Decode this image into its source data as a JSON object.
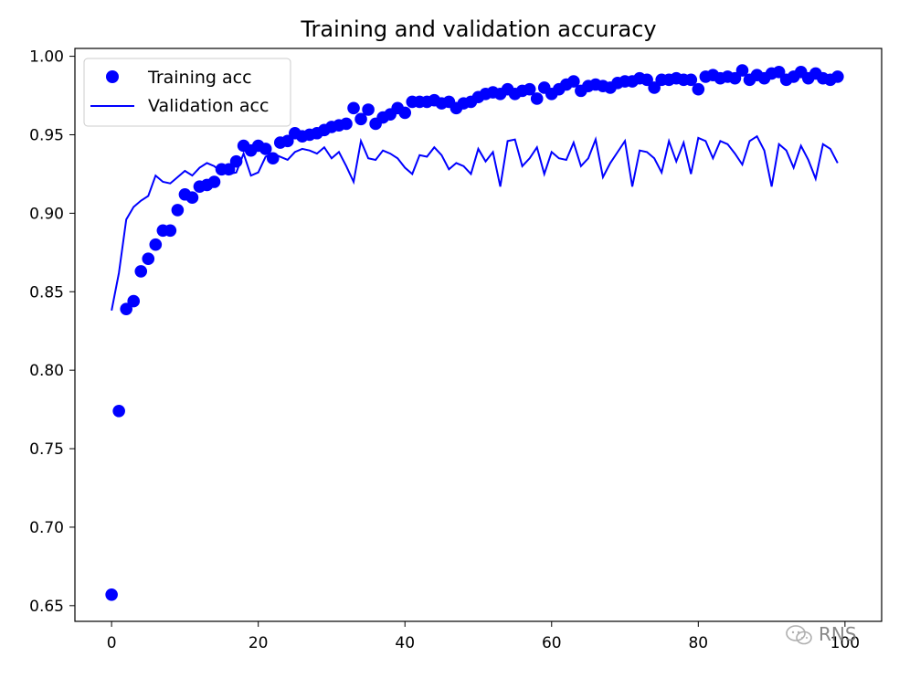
{
  "chart_data": {
    "type": "line",
    "title": "Training and validation accuracy",
    "xlabel": "",
    "ylabel": "",
    "xlim": [
      -5,
      105
    ],
    "ylim": [
      0.64,
      1.005
    ],
    "x_ticks": [
      0,
      20,
      40,
      60,
      80,
      100
    ],
    "y_ticks": [
      0.65,
      0.7,
      0.75,
      0.8,
      0.85,
      0.9,
      0.95,
      1.0
    ],
    "x_tick_labels": [
      "0",
      "20",
      "40",
      "60",
      "80",
      "100"
    ],
    "y_tick_labels": [
      "0.65",
      "0.70",
      "0.75",
      "0.80",
      "0.85",
      "0.90",
      "0.95",
      "1.00"
    ],
    "grid": false,
    "legend_position": "top-left",
    "x": [
      0,
      1,
      2,
      3,
      4,
      5,
      6,
      7,
      8,
      9,
      10,
      11,
      12,
      13,
      14,
      15,
      16,
      17,
      18,
      19,
      20,
      21,
      22,
      23,
      24,
      25,
      26,
      27,
      28,
      29,
      30,
      31,
      32,
      33,
      34,
      35,
      36,
      37,
      38,
      39,
      40,
      41,
      42,
      43,
      44,
      45,
      46,
      47,
      48,
      49,
      50,
      51,
      52,
      53,
      54,
      55,
      56,
      57,
      58,
      59,
      60,
      61,
      62,
      63,
      64,
      65,
      66,
      67,
      68,
      69,
      70,
      71,
      72,
      73,
      74,
      75,
      76,
      77,
      78,
      79,
      80,
      81,
      82,
      83,
      84,
      85,
      86,
      87,
      88,
      89,
      90,
      91,
      92,
      93,
      94,
      95,
      96,
      97,
      98,
      99
    ],
    "series": [
      {
        "name": "Training acc",
        "style": "markers",
        "color": "#0000ff",
        "values": [
          0.657,
          0.774,
          0.839,
          0.844,
          0.863,
          0.871,
          0.88,
          0.889,
          0.889,
          0.902,
          0.912,
          0.91,
          0.917,
          0.918,
          0.92,
          0.928,
          0.928,
          0.933,
          0.943,
          0.94,
          0.943,
          0.941,
          0.935,
          0.945,
          0.946,
          0.951,
          0.949,
          0.95,
          0.951,
          0.953,
          0.955,
          0.956,
          0.957,
          0.967,
          0.96,
          0.966,
          0.957,
          0.961,
          0.963,
          0.967,
          0.964,
          0.971,
          0.971,
          0.971,
          0.972,
          0.97,
          0.971,
          0.967,
          0.97,
          0.971,
          0.974,
          0.976,
          0.977,
          0.976,
          0.979,
          0.976,
          0.978,
          0.979,
          0.973,
          0.98,
          0.976,
          0.979,
          0.982,
          0.984,
          0.978,
          0.981,
          0.982,
          0.981,
          0.98,
          0.983,
          0.984,
          0.984,
          0.986,
          0.985,
          0.98,
          0.985,
          0.985,
          0.986,
          0.985,
          0.985,
          0.979,
          0.987,
          0.988,
          0.986,
          0.987,
          0.986,
          0.991,
          0.985,
          0.988,
          0.986,
          0.989,
          0.99,
          0.985,
          0.987,
          0.99,
          0.986,
          0.989,
          0.986,
          0.985,
          0.987
        ]
      },
      {
        "name": "Validation acc",
        "style": "line",
        "color": "#0000ff",
        "values": [
          0.838,
          0.862,
          0.896,
          0.904,
          0.908,
          0.911,
          0.924,
          0.92,
          0.919,
          0.923,
          0.927,
          0.924,
          0.929,
          0.932,
          0.93,
          0.926,
          0.925,
          0.926,
          0.938,
          0.924,
          0.926,
          0.936,
          0.938,
          0.936,
          0.934,
          0.939,
          0.941,
          0.94,
          0.938,
          0.942,
          0.935,
          0.939,
          0.93,
          0.92,
          0.946,
          0.935,
          0.934,
          0.94,
          0.938,
          0.935,
          0.929,
          0.925,
          0.937,
          0.936,
          0.942,
          0.937,
          0.928,
          0.932,
          0.93,
          0.925,
          0.941,
          0.933,
          0.939,
          0.917,
          0.946,
          0.947,
          0.93,
          0.935,
          0.942,
          0.925,
          0.939,
          0.935,
          0.934,
          0.945,
          0.93,
          0.935,
          0.947,
          0.923,
          0.932,
          0.939,
          0.946,
          0.917,
          0.94,
          0.939,
          0.935,
          0.926,
          0.946,
          0.933,
          0.945,
          0.925,
          0.948,
          0.946,
          0.935,
          0.946,
          0.944,
          0.938,
          0.931,
          0.946,
          0.949,
          0.94,
          0.917,
          0.944,
          0.94,
          0.929,
          0.943,
          0.934,
          0.922,
          0.944,
          0.941,
          0.932
        ]
      }
    ]
  },
  "watermark": {
    "text": "RNS",
    "icon_name": "wechat-icon"
  }
}
